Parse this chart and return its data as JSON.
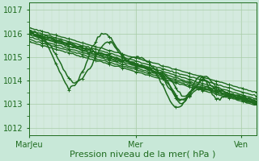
{
  "background_color": "#c8e8d8",
  "plot_bg_color": "#d4eadf",
  "grid_major_color": "#a8cca8",
  "grid_minor_color": "#c0dcc0",
  "line_color": "#1e6b1e",
  "xlabel": "Pression niveau de la mer( hPa )",
  "xtick_labels": [
    "MarJeu",
    "Mer",
    "Ven"
  ],
  "xtick_positions": [
    0.0,
    0.47,
    0.935
  ],
  "ylim": [
    1011.7,
    1017.3
  ],
  "yticks": [
    1012,
    1013,
    1014,
    1015,
    1016,
    1017
  ],
  "xlabel_fontsize": 8,
  "tick_fontsize": 7,
  "n_points": 120
}
